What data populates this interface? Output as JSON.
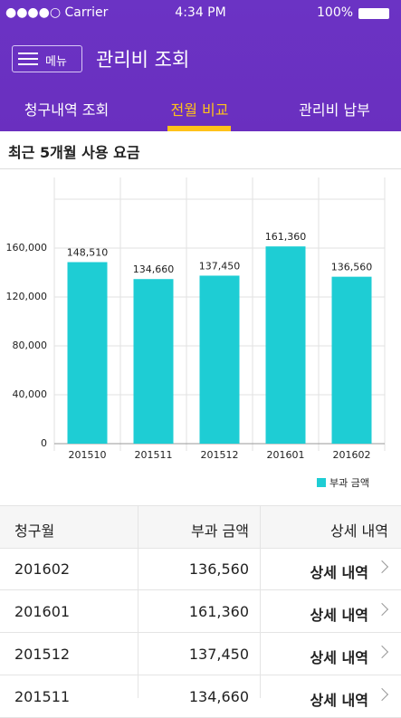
{
  "status_bar": {
    "carrier": "●●●●○ Carrier",
    "time": "4:34 PM",
    "battery": "100%"
  },
  "header": {
    "menu": "메뉴",
    "title": "관리비 조회"
  },
  "tabs": [
    "청구내역 조회",
    "전월 비교",
    "관리비 납부"
  ],
  "section_title": "최근 5개월 사용 요금",
  "chart_data": {
    "type": "bar",
    "categories": [
      "201510",
      "201511",
      "201512",
      "201601",
      "201602"
    ],
    "series": [
      {
        "name": "부과 금액",
        "color": "#1ecdd4",
        "values": [
          148510,
          134660,
          137450,
          161360,
          136560
        ],
        "value_labels": [
          "148,510",
          "134,660",
          "137,450",
          "161,360",
          "136,560"
        ]
      }
    ],
    "ylim": [
      0,
      200000
    ],
    "yticks": [
      0,
      {
        "value": 40000,
        "label": "40,000"
      },
      {
        "value": 80000,
        "label": "80,000"
      },
      {
        "value": 120000,
        "label": "120,000"
      },
      {
        "value": 160000,
        "label": "160,000"
      }
    ],
    "grid": true,
    "legend": "bottom-right"
  },
  "table": {
    "header": [
      "청구월",
      "부과 금액",
      "상세 내역"
    ],
    "rows": [
      [
        "201602",
        "136,560",
        "상세 내역"
      ],
      [
        "201601",
        "161,360",
        "상세 내역"
      ],
      [
        "201512",
        "137,450",
        "상세 내역"
      ],
      [
        "201511",
        "134,660",
        "상세 내역"
      ]
    ]
  }
}
